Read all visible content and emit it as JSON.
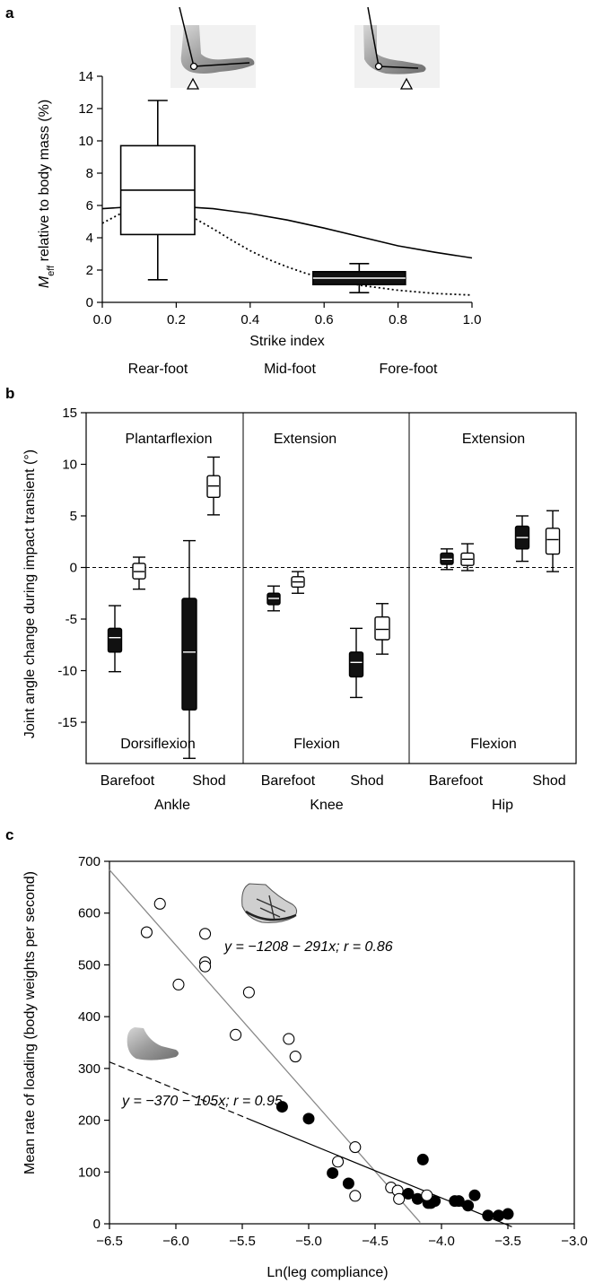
{
  "panel_labels": [
    "a",
    "b",
    "c"
  ],
  "chart_data": [
    {
      "type": "box",
      "panel": "a",
      "xlabel": "Strike index",
      "ylabel_main": "M",
      "ylabel_sub": "eff",
      "ylabel_rest": " relative to body mass (%)",
      "xlim": [
        0,
        1
      ],
      "ylim": [
        0,
        14
      ],
      "xticks": [
        0.0,
        0.2,
        0.4,
        0.6,
        0.8,
        1.0
      ],
      "xtick_labels": [
        "0.0",
        "0.2",
        "0.4",
        "0.6",
        "0.8",
        "1.0"
      ],
      "yticks": [
        0,
        2,
        4,
        6,
        8,
        10,
        12,
        14
      ],
      "ytick_labels": [
        "0",
        "2",
        "4",
        "6",
        "8",
        "10",
        "12",
        "14"
      ],
      "categories": [
        "Rear-foot",
        "Mid-foot",
        "Fore-foot"
      ],
      "boxes": [
        {
          "x_from": 0.05,
          "x_to": 0.25,
          "whisker_low": 1.4,
          "q1": 4.2,
          "median": 6.95,
          "q3": 9.7,
          "whisker_high": 12.5,
          "filled": false
        },
        {
          "x_from": 0.57,
          "x_to": 0.82,
          "whisker_low": 0.6,
          "q1": 1.1,
          "median": 1.5,
          "q3": 1.9,
          "whisker_high": 2.4,
          "filled": true
        }
      ],
      "curves": [
        {
          "style": "solid",
          "x": [
            0.0,
            0.1,
            0.2,
            0.3,
            0.4,
            0.5,
            0.6,
            0.7,
            0.8,
            0.9,
            1.0
          ],
          "y": [
            5.8,
            5.95,
            5.95,
            5.8,
            5.5,
            5.1,
            4.6,
            4.05,
            3.5,
            3.1,
            2.75
          ]
        },
        {
          "style": "dotted",
          "x": [
            0.0,
            0.05,
            0.1,
            0.15,
            0.2,
            0.25,
            0.3,
            0.35,
            0.4,
            0.45,
            0.5,
            0.55,
            0.6,
            0.65,
            0.7,
            0.8,
            0.9,
            1.0
          ],
          "y": [
            4.9,
            5.5,
            5.85,
            5.9,
            5.7,
            5.2,
            4.55,
            3.85,
            3.2,
            2.65,
            2.2,
            1.8,
            1.5,
            1.25,
            1.05,
            0.75,
            0.55,
            0.45
          ]
        }
      ],
      "pictograms": [
        "rear-foot-strike",
        "fore-foot-strike"
      ]
    },
    {
      "type": "box",
      "panel": "b",
      "ylabel": "Joint angle change during impact transient (°)",
      "ylim": [
        -19,
        15
      ],
      "yticks": [
        15,
        10,
        5,
        0,
        -5,
        -10,
        -15
      ],
      "ytick_labels": [
        "15",
        "10",
        "5",
        "0",
        "-5",
        "-10",
        "-15"
      ],
      "groups": [
        {
          "name": "Ankle",
          "top_label": "Plantarflexion",
          "bottom_label": "Dorsiflexion"
        },
        {
          "name": "Knee",
          "top_label": "Extension",
          "bottom_label": "Flexion"
        },
        {
          "name": "Hip",
          "top_label": "Extension",
          "bottom_label": "Flexion"
        }
      ],
      "condition_labels": [
        "Barefoot",
        "Shod"
      ],
      "boxes": [
        {
          "group": "Ankle",
          "condition": "Barefoot",
          "series": "Fore-foot",
          "filled": true,
          "whisker_low": -10.1,
          "q1": -8.2,
          "median": -6.8,
          "q3": -5.9,
          "whisker_high": -3.7
        },
        {
          "group": "Ankle",
          "condition": "Barefoot",
          "series": "Rear-foot",
          "filled": false,
          "whisker_low": -2.1,
          "q1": -1.1,
          "median": -0.4,
          "q3": 0.4,
          "whisker_high": 1.0
        },
        {
          "group": "Ankle",
          "condition": "Shod",
          "series": "Fore-foot",
          "filled": true,
          "whisker_low": -18.5,
          "q1": -13.8,
          "median": -8.2,
          "q3": -3.0,
          "whisker_high": 2.6
        },
        {
          "group": "Ankle",
          "condition": "Shod",
          "series": "Rear-foot",
          "filled": false,
          "whisker_low": 5.1,
          "q1": 6.8,
          "median": 7.9,
          "q3": 8.9,
          "whisker_high": 10.7
        },
        {
          "group": "Knee",
          "condition": "Barefoot",
          "series": "Fore-foot",
          "filled": true,
          "whisker_low": -4.2,
          "q1": -3.6,
          "median": -3.0,
          "q3": -2.5,
          "whisker_high": -1.8
        },
        {
          "group": "Knee",
          "condition": "Barefoot",
          "series": "Rear-foot",
          "filled": false,
          "whisker_low": -2.5,
          "q1": -1.9,
          "median": -1.4,
          "q3": -0.9,
          "whisker_high": -0.4
        },
        {
          "group": "Knee",
          "condition": "Shod",
          "series": "Fore-foot",
          "filled": true,
          "whisker_low": -12.6,
          "q1": -10.6,
          "median": -9.2,
          "q3": -8.2,
          "whisker_high": -5.9
        },
        {
          "group": "Knee",
          "condition": "Shod",
          "series": "Rear-foot",
          "filled": false,
          "whisker_low": -8.4,
          "q1": -7.0,
          "median": -6.0,
          "q3": -4.8,
          "whisker_high": -3.5
        },
        {
          "group": "Hip",
          "condition": "Barefoot",
          "series": "Fore-foot",
          "filled": true,
          "whisker_low": -0.2,
          "q1": 0.3,
          "median": 0.8,
          "q3": 1.4,
          "whisker_high": 1.8
        },
        {
          "group": "Hip",
          "condition": "Barefoot",
          "series": "Rear-foot",
          "filled": false,
          "whisker_low": -0.3,
          "q1": 0.2,
          "median": 0.8,
          "q3": 1.4,
          "whisker_high": 2.3
        },
        {
          "group": "Hip",
          "condition": "Shod",
          "series": "Fore-foot",
          "filled": true,
          "whisker_low": 0.6,
          "q1": 1.8,
          "median": 2.9,
          "q3": 4.0,
          "whisker_high": 5.0
        },
        {
          "group": "Hip",
          "condition": "Shod",
          "series": "Rear-foot",
          "filled": false,
          "whisker_low": -0.4,
          "q1": 1.3,
          "median": 2.7,
          "q3": 3.8,
          "whisker_high": 5.5
        }
      ]
    },
    {
      "type": "scatter",
      "panel": "c",
      "xlabel": "Ln(leg compliance)",
      "ylabel": "Mean rate of loading (body weights per second)",
      "xlim": [
        -6.5,
        -3.0
      ],
      "ylim": [
        0,
        700
      ],
      "xticks": [
        -6.5,
        -6.0,
        -5.5,
        -5.0,
        -4.5,
        -4.0,
        -3.5,
        -3.0
      ],
      "xtick_labels": [
        "−6.5",
        "−6.0",
        "−5.5",
        "−5.0",
        "−4.5",
        "−4.0",
        "−3.5",
        "−3.0"
      ],
      "yticks": [
        0,
        100,
        200,
        300,
        400,
        500,
        600,
        700
      ],
      "ytick_labels": [
        "0",
        "100",
        "200",
        "300",
        "400",
        "500",
        "600",
        "700"
      ],
      "series": [
        {
          "marker": "open-circle",
          "pictogram": "shod-foot",
          "fit_label": "y = −1208 − 291x; r = 0.86",
          "fit": {
            "intercept": -1208,
            "slope": -291,
            "x_from": -6.5,
            "x_to": -4.16
          },
          "x": [
            -6.22,
            -6.12,
            -5.98,
            -5.78,
            -5.78,
            -5.78,
            -5.55,
            -5.45,
            -5.15,
            -5.1,
            -4.78,
            -4.65,
            -4.65,
            -4.38,
            -4.33,
            -4.32,
            -4.11
          ],
          "y": [
            563,
            618,
            462,
            560,
            505,
            497,
            365,
            447,
            357,
            323,
            120,
            148,
            54,
            70,
            64,
            48,
            55
          ]
        },
        {
          "marker": "filled-circle",
          "pictogram": "barefoot",
          "fit_label": "y = −370 − 105x; r = 0.95",
          "fit": {
            "intercept": -370,
            "slope": -105,
            "x_from": -6.5,
            "x_to": -3.47,
            "dashed_until": -5.45
          },
          "x": [
            -5.2,
            -5.0,
            -4.82,
            -4.7,
            -4.25,
            -4.18,
            -4.14,
            -4.1,
            -4.08,
            -4.05,
            -3.9,
            -3.87,
            -3.8,
            -3.75,
            -3.65,
            -3.57,
            -3.5
          ],
          "y": [
            226,
            203,
            98,
            78,
            58,
            48,
            124,
            40,
            40,
            44,
            44,
            44,
            35,
            55,
            16,
            16,
            19
          ]
        }
      ]
    }
  ]
}
